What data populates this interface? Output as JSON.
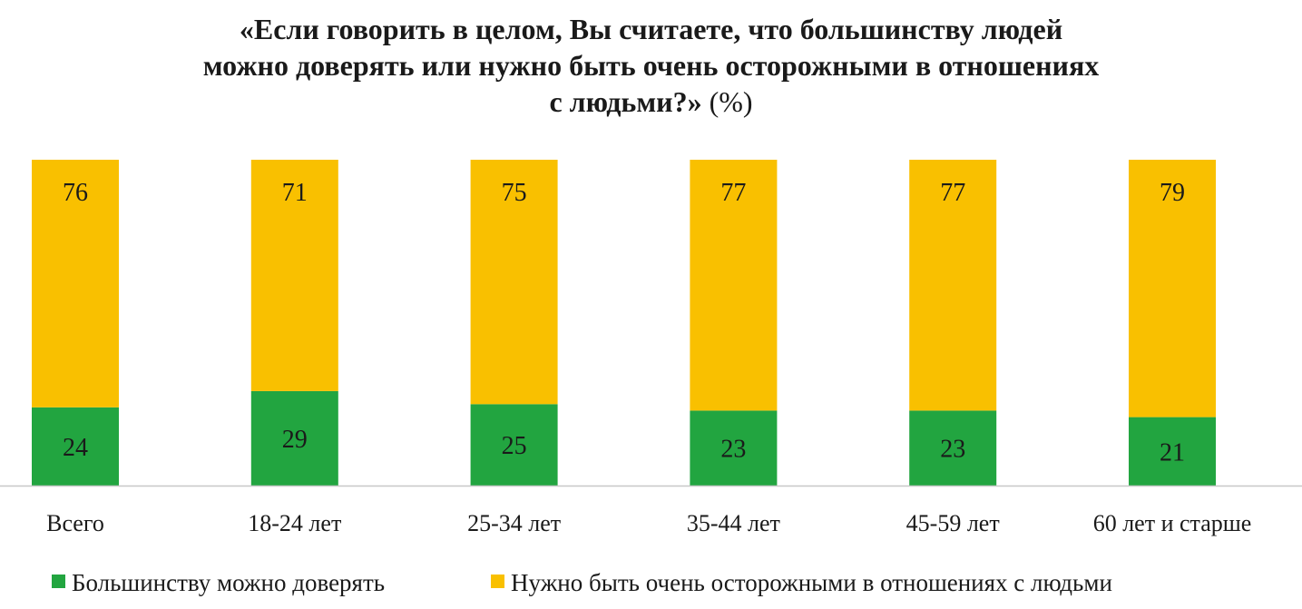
{
  "chart_data": {
    "type": "bar",
    "stacked": true,
    "title_lines": [
      "«Если говорить в целом, Вы считаете, что большинству людей",
      "можно доверять или нужно быть очень осторожными в отношениях",
      "с людьми?»"
    ],
    "title_unit": "(%)",
    "categories": [
      "Всего",
      "18-24 лет",
      "25-34 лет",
      "35-44 лет",
      "45-59 лет",
      "60 лет и старше"
    ],
    "series": [
      {
        "name": "Большинству можно доверять",
        "color": "#22a540",
        "values": [
          24,
          29,
          25,
          23,
          23,
          21
        ]
      },
      {
        "name": "Нужно быть очень осторожными в отношениях с людьми",
        "color": "#f9c000",
        "values": [
          76,
          71,
          75,
          77,
          77,
          79
        ]
      }
    ],
    "ylim": [
      0,
      100
    ],
    "grid": false,
    "legend": "bottom"
  }
}
